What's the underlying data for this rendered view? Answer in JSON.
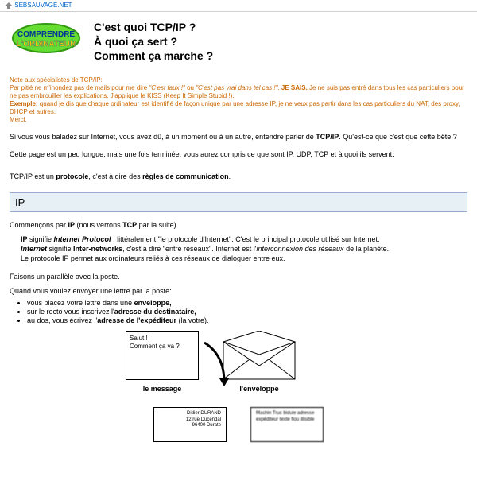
{
  "topbar": {
    "site": "SEBSAUVAGE.NET"
  },
  "logo": {
    "line1": "COMPRENDRE",
    "line2": "L'ORDINATEUR"
  },
  "title": {
    "l1": "C'est quoi TCP/IP ?",
    "l2": "À quoi ça sert ?",
    "l3": "Comment ça marche ?"
  },
  "note": {
    "head": "Note aux spécialistes de TCP/IP:",
    "body_html": "Par pitié ne m'inondez pas de mails pour me dire <i>\"C'est faux !\"</i> ou <i>\"C'est pas vrai dans tel cas !\"</i>. <b>JE SAIS.</b> Je ne suis pas entré dans tous les cas particuliers pour ne pas embrouiller les explications. J'applique le KISS (Keep It Simple Stupid !).<br><b>Exemple:</b> quand je dis que chaque ordinateur est identifié de façon unique par une adresse IP, je ne veux pas partir dans les cas particuliers du NAT, des proxy, DHCP et autres.<br>Merci."
  },
  "intro": {
    "p1_html": "Si vous vous baladez sur Internet, vous avez dû, à un moment ou à un autre, entendre parler de <b>TCP/IP</b>. Qu'est-ce que c'est que cette bête ?",
    "p2": "Cette page est un peu longue, mais une fois terminée, vous aurez compris ce que sont IP, UDP, TCP et à quoi ils servent.",
    "p3_html": "TCP/IP est un <b>protocole</b>, c'est à dire des <b>règles de communication</b>."
  },
  "section_ip": {
    "head": "IP",
    "p1_html": "Commençons par <b>IP</b> (nous verrons <b>TCP</b> par la suite).",
    "block_html": "<b>IP</b> signifie <b><i>Internet Protocol</i></b> : littéralement \"le protocole d'Internet\". C'est le principal protocole utilisé sur Internet.<br><b><i>Internet</i></b> signifie <b>Inter-networks</b>, c'est à dire \"entre réseaux\". Internet est l'<i>interconnexion des réseaux</i> de la planète.<br>Le protocole IP permet aux ordinateurs reliés à ces réseaux de dialoguer entre eux.",
    "p2": "Faisons un parallèle avec la poste.",
    "p3": "Quand vous voulez envoyer une lettre par la poste:",
    "bullets": [
      "vous placez votre lettre dans une <b>enveloppe,</b>",
      "sur le recto vous inscrivez l'<b>adresse du destinataire,</b>",
      "au dos, vous écrivez l'<b>adresse de l'expéditeur</b> (la votre)."
    ]
  },
  "diagram": {
    "msg_l1": "Salut !",
    "msg_l2": "Comment ça va ?",
    "caption_msg": "le message",
    "caption_env": "l'enveloppe",
    "addr_name": "Didier DURAND",
    "addr_street": "12 rue Ducendal",
    "addr_city": "96400 Durate",
    "blur_text": "Machin Truc bidule adresse expéditeur texte flou illisible"
  },
  "style": {
    "bg": "#ffffff",
    "note_color": "#cc6600",
    "section_bg": "#e6f0f5",
    "section_border": "#99aacc",
    "title_fontsize": 14,
    "body_fontsize": 9,
    "note_fontsize": 8
  }
}
